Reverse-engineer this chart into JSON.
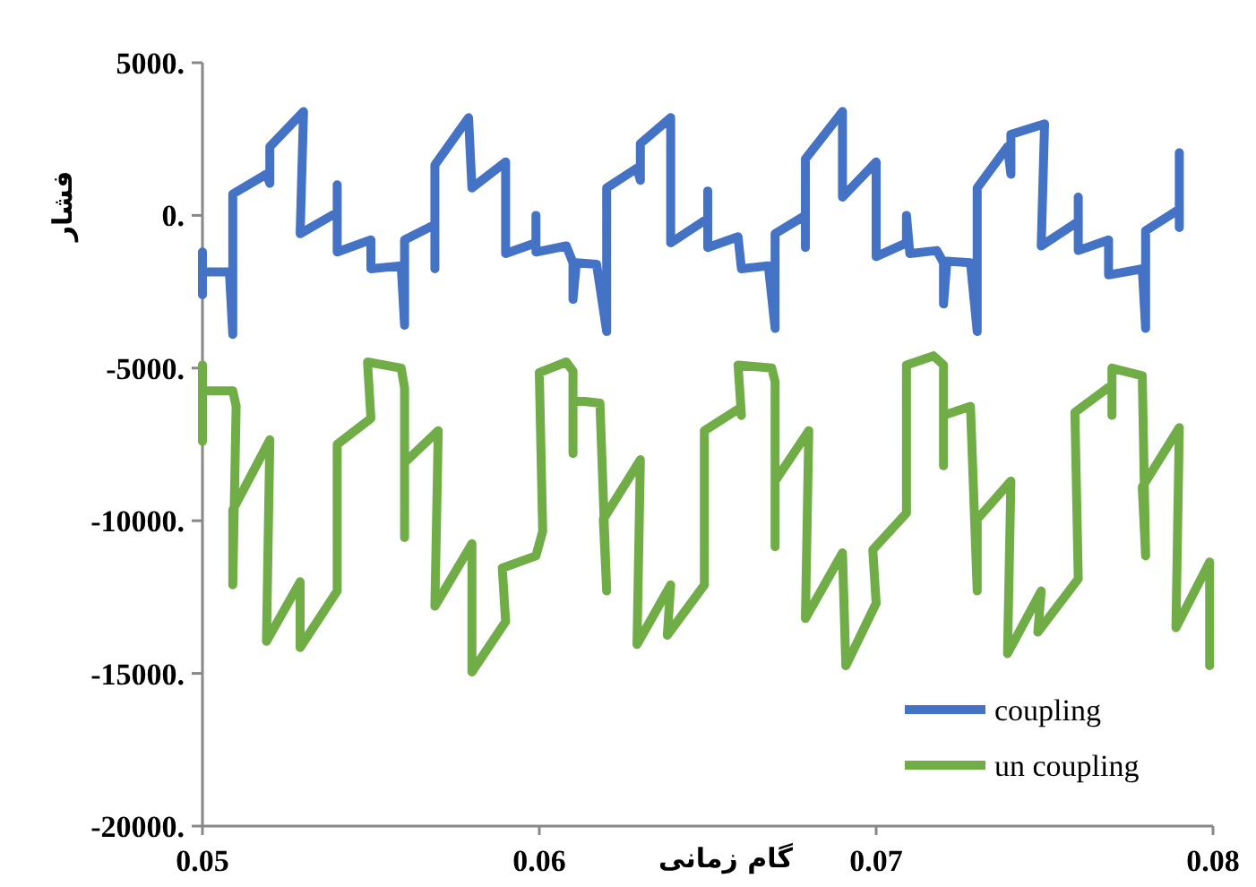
{
  "chart_data": {
    "type": "line",
    "xlabel": "گام زمانی",
    "ylabel": "فشار",
    "xlim": [
      0.05,
      0.08
    ],
    "xticks": [
      0.05,
      0.06,
      0.07,
      0.08
    ],
    "ylim": [
      -20000,
      5000
    ],
    "yticks": [
      {
        "value": 5000,
        "label": "5000."
      },
      {
        "value": 0,
        "label": "0."
      },
      {
        "value": -5000,
        "label": "-5000."
      },
      {
        "value": -10000,
        "label": "-10000."
      },
      {
        "value": -15000,
        "label": "-15000."
      },
      {
        "value": -20000,
        "label": "-20000."
      }
    ],
    "grid": false,
    "legend": "bottom right",
    "marker": "none",
    "line_style": "solid",
    "series": [
      {
        "name": "coupling",
        "color": "#4472c4",
        "x": [
          0.05,
          0.05,
          0.05,
          0.0508,
          0.0509,
          0.0509,
          0.0519,
          0.052,
          0.052,
          0.053,
          0.0529,
          0.054,
          0.054,
          0.054,
          0.055,
          0.055,
          0.0559,
          0.056,
          0.056,
          0.0569,
          0.0569,
          0.0569,
          0.0579,
          0.058,
          0.059,
          0.059,
          0.0599,
          0.0599,
          0.0599,
          0.0608,
          0.061,
          0.061,
          0.0611,
          0.0617,
          0.062,
          0.062,
          0.0629,
          0.063,
          0.063,
          0.0639,
          0.0639,
          0.065,
          0.065,
          0.065,
          0.0659,
          0.066,
          0.0668,
          0.067,
          0.067,
          0.0679,
          0.0679,
          0.0679,
          0.069,
          0.069,
          0.07,
          0.07,
          0.0709,
          0.0709,
          0.071,
          0.0718,
          0.072,
          0.072,
          0.0721,
          0.0728,
          0.073,
          0.073,
          0.0739,
          0.074,
          0.074,
          0.075,
          0.0749,
          0.076,
          0.076,
          0.076,
          0.0769,
          0.0769,
          0.0779,
          0.078,
          0.078,
          0.079,
          0.079,
          0.079
        ],
        "values": [
          -1200,
          -2600,
          -1850,
          -1850,
          -3900,
          700,
          1350,
          1050,
          2250,
          3400,
          -600,
          100,
          1000,
          -1200,
          -800,
          -1750,
          -1650,
          -3600,
          -800,
          -300,
          -1750,
          1650,
          3200,
          900,
          1750,
          -1250,
          -900,
          0,
          -1200,
          -1000,
          -1550,
          -2750,
          -1550,
          -1600,
          -3800,
          900,
          1550,
          1150,
          2350,
          3200,
          -900,
          -100,
          800,
          -1050,
          -700,
          -1750,
          -1650,
          -3700,
          -600,
          0,
          -1050,
          1850,
          3400,
          600,
          1750,
          -1350,
          -900,
          0,
          -1250,
          -1150,
          -1550,
          -2900,
          -1500,
          -1550,
          -3800,
          900,
          2250,
          1350,
          2650,
          3000,
          -1000,
          -200,
          600,
          -1150,
          -800,
          -1950,
          -1750,
          -3700,
          -500,
          200,
          -400,
          2050
        ]
      },
      {
        "name": "un coupling",
        "color": "#70ad47",
        "x": [
          0.05,
          0.05,
          0.05,
          0.0509,
          0.051,
          0.0509,
          0.0509,
          0.052,
          0.0519,
          0.0529,
          0.0529,
          0.054,
          0.054,
          0.055,
          0.0549,
          0.0559,
          0.056,
          0.056,
          0.056,
          0.057,
          0.0569,
          0.058,
          0.058,
          0.059,
          0.0589,
          0.0599,
          0.0601,
          0.06,
          0.0608,
          0.061,
          0.061,
          0.061,
          0.0618,
          0.062,
          0.0619,
          0.063,
          0.0629,
          0.0639,
          0.0638,
          0.0649,
          0.0649,
          0.0659,
          0.066,
          0.0659,
          0.0669,
          0.067,
          0.067,
          0.067,
          0.068,
          0.0679,
          0.069,
          0.0691,
          0.07,
          0.0699,
          0.0709,
          0.0709,
          0.0717,
          0.072,
          0.072,
          0.072,
          0.0728,
          0.073,
          0.073,
          0.074,
          0.0739,
          0.0749,
          0.0748,
          0.076,
          0.0759,
          0.077,
          0.077,
          0.077,
          0.0779,
          0.078,
          0.0779,
          0.079,
          0.0789,
          0.0799,
          0.0799
        ],
        "values": [
          -4900,
          -7400,
          -5750,
          -5750,
          -6250,
          -12100,
          -9650,
          -7350,
          -13950,
          -12000,
          -14150,
          -12300,
          -7500,
          -6650,
          -4800,
          -5000,
          -5650,
          -10550,
          -8100,
          -7050,
          -12800,
          -10750,
          -14950,
          -13300,
          -11550,
          -11150,
          -10350,
          -5150,
          -4800,
          -5100,
          -7800,
          -6050,
          -6150,
          -12300,
          -9950,
          -8000,
          -14050,
          -12100,
          -13750,
          -12100,
          -7050,
          -6350,
          -6550,
          -4900,
          -5000,
          -5450,
          -10850,
          -8700,
          -7050,
          -13200,
          -11050,
          -14750,
          -12700,
          -10950,
          -9750,
          -4900,
          -4600,
          -4900,
          -8200,
          -6550,
          -6250,
          -12300,
          -9950,
          -8700,
          -14350,
          -12300,
          -13650,
          -11900,
          -6450,
          -5550,
          -6550,
          -5000,
          -5250,
          -11150,
          -8900,
          -6950,
          -13500,
          -11350,
          -14750
        ]
      }
    ]
  }
}
